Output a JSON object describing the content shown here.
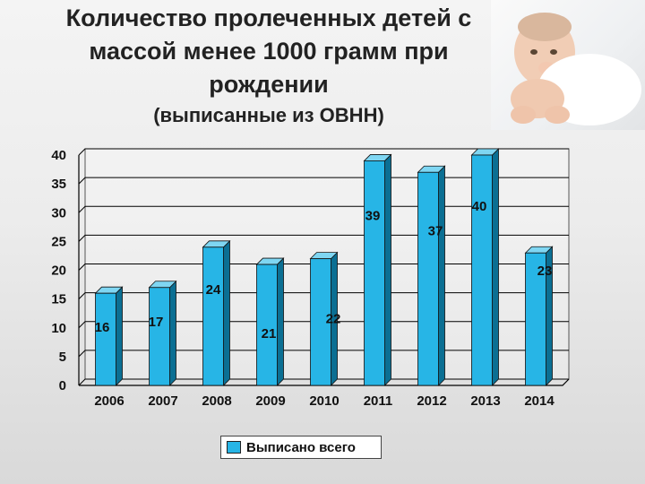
{
  "title": "Количество пролеченных детей с массой менее 1000 грамм при рождении",
  "subtitle": "(выписанные из ОВНН)",
  "photo": {
    "description_icon": "baby-photo"
  },
  "colors": {
    "bar_front": "#27b5e6",
    "bar_side": "#0b6f93",
    "bar_top": "#7fd6f2",
    "grid": "#000000"
  },
  "chart_data": {
    "type": "bar",
    "categories": [
      "2006",
      "2007",
      "2008",
      "2009",
      "2010",
      "2011",
      "2012",
      "2013",
      "2014"
    ],
    "series": [
      {
        "name": "Выписано всего",
        "values": [
          16,
          17,
          24,
          21,
          22,
          39,
          37,
          40,
          23
        ]
      }
    ],
    "ylim": [
      0,
      40
    ],
    "yticks": [
      0,
      5,
      10,
      15,
      20,
      25,
      30,
      35,
      40
    ],
    "grid": true,
    "legend": "bottom",
    "style": "3d"
  }
}
